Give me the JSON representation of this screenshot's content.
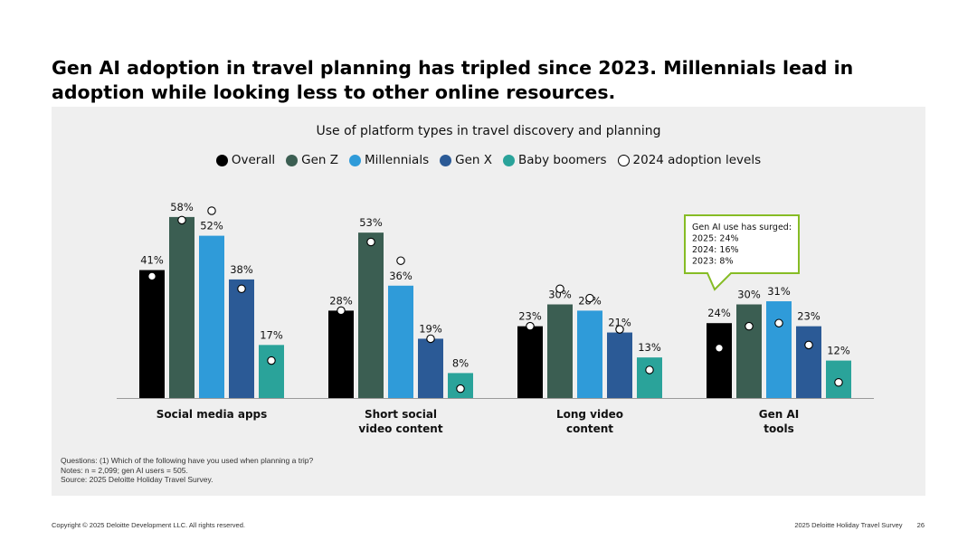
{
  "slide": {
    "title": "Gen AI adoption in travel planning has tripled since 2023. Millennials lead in adoption while looking less to other online resources."
  },
  "colors": {
    "overall": "#000000",
    "genz": "#3b5e52",
    "millennials": "#2f9bd9",
    "genx": "#2b5a96",
    "boomers": "#2aa39a",
    "callout_border": "#86bc25"
  },
  "chart_data": {
    "type": "bar",
    "title": "Use of platform types in travel discovery and planning",
    "categories": [
      [
        "Social media apps"
      ],
      [
        "Short social",
        "video content"
      ],
      [
        "Long video",
        "content"
      ],
      [
        "Gen AI",
        "tools"
      ]
    ],
    "series": [
      {
        "name": "Overall",
        "color_key": "overall",
        "values": [
          41,
          28,
          23,
          24
        ],
        "prior_2024": [
          39,
          28,
          23,
          16
        ]
      },
      {
        "name": "Gen Z",
        "color_key": "genz",
        "values": [
          58,
          53,
          30,
          30
        ],
        "prior_2024": [
          57,
          50,
          35,
          23
        ]
      },
      {
        "name": "Millennials",
        "color_key": "millennials",
        "values": [
          52,
          36,
          28,
          31
        ],
        "prior_2024": [
          60,
          44,
          32,
          24
        ]
      },
      {
        "name": "Gen X",
        "color_key": "genx",
        "values": [
          38,
          19,
          21,
          23
        ],
        "prior_2024": [
          35,
          19,
          22,
          17
        ]
      },
      {
        "name": "Baby boomers",
        "color_key": "boomers",
        "values": [
          17,
          8,
          13,
          12
        ],
        "prior_2024": [
          12,
          3,
          9,
          5
        ]
      }
    ],
    "value_suffix": "%",
    "ylim": [
      0,
      60
    ],
    "legend": {
      "position": "top-center",
      "marker_label": "2024 adoption levels"
    },
    "callout": {
      "category_index": 3,
      "lines": [
        "Gen AI use has surged:",
        "2025: 24%",
        "2024: 16%",
        "2023: 8%"
      ]
    }
  },
  "notes": {
    "questions": "Questions: (1) Which of the following have you used when planning a trip?",
    "notes": "Notes: n = 2,099; gen AI users = 505.",
    "source": "Source: 2025 Deloitte Holiday Travel Survey."
  },
  "footer": {
    "copyright": "Copyright © 2025 Deloitte Development LLC. All rights reserved.",
    "report": "2025 Deloitte Holiday Travel Survey",
    "page": "26"
  }
}
